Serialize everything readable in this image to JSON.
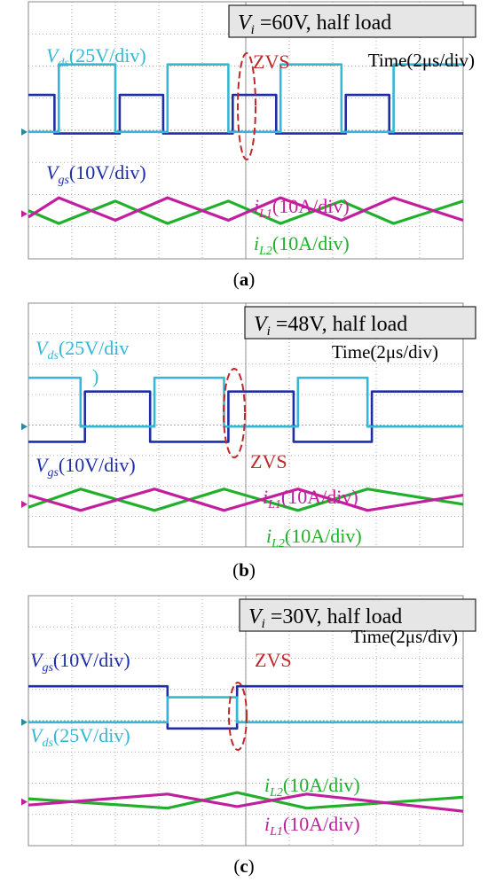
{
  "colors": {
    "vds": "#33b8d6",
    "vgs": "#1e2ea8",
    "il1": "#c21f9e",
    "il2": "#22b02c",
    "zvs": "#c0282a",
    "grid": "#9a9a9a",
    "box": "#e6e6e6"
  },
  "chart_data": [
    {
      "type": "line",
      "panel_label": "a",
      "header": {
        "var": "V",
        "sub": "i",
        "text": " =60V, half load"
      },
      "time_label": "Time(2μs/div)",
      "zvs_label": "ZVS",
      "labels": {
        "vds": {
          "var": "V",
          "sub": "ds",
          "text": "(25V/div)"
        },
        "vgs": {
          "var": "V",
          "sub": "gs",
          "text": "(10V/div)"
        },
        "il1": {
          "var": "i",
          "sub": "L1",
          "text": "(10A/div)"
        },
        "il2": {
          "var": "i",
          "sub": "L2",
          "text": "(10A/div)"
        }
      },
      "x_range_div": [
        0,
        10
      ],
      "y_range_div": [
        0,
        8
      ],
      "series": [
        {
          "key": "vds",
          "x": [
            0.0,
            0.7,
            0.7,
            2.0,
            2.0,
            3.2,
            3.2,
            4.6,
            4.6,
            5.8,
            5.8,
            7.2,
            7.2,
            8.4,
            8.4,
            10.0
          ],
          "y": [
            3.95,
            3.95,
            6.05,
            6.05,
            3.95,
            3.95,
            6.05,
            6.05,
            3.95,
            3.95,
            6.05,
            6.05,
            3.95,
            3.95,
            6.05,
            6.05
          ]
        },
        {
          "key": "vgs",
          "x": [
            0.0,
            0.6,
            0.6,
            2.1,
            2.1,
            3.1,
            3.1,
            4.7,
            4.7,
            5.7,
            5.7,
            7.3,
            7.3,
            8.3,
            8.3,
            10.0
          ],
          "y": [
            5.1,
            5.1,
            3.9,
            3.9,
            5.1,
            5.1,
            3.9,
            3.9,
            5.1,
            5.1,
            3.9,
            3.9,
            5.1,
            5.1,
            3.9,
            3.9
          ]
        },
        {
          "key": "il1",
          "x": [
            0.0,
            0.7,
            2.0,
            3.2,
            4.6,
            5.8,
            7.2,
            8.4,
            10.0
          ],
          "y": [
            1.3,
            1.9,
            1.2,
            1.9,
            1.2,
            1.9,
            1.2,
            1.9,
            1.2
          ]
        },
        {
          "key": "il2",
          "x": [
            0.0,
            0.7,
            2.0,
            3.2,
            4.6,
            5.8,
            7.2,
            8.4,
            10.0
          ],
          "y": [
            1.5,
            1.1,
            1.8,
            1.1,
            1.8,
            1.1,
            1.8,
            1.1,
            1.8
          ]
        }
      ]
    },
    {
      "type": "line",
      "panel_label": "b",
      "header": {
        "var": "V",
        "sub": "i",
        "text": " =48V, half load"
      },
      "time_label": "Time(2μs/div)",
      "zvs_label": "ZVS",
      "labels": {
        "vds": {
          "var": "V",
          "sub": "ds",
          "text": "(25V/div"
        },
        "vds_extra": ")",
        "vgs": {
          "var": "V",
          "sub": "gs",
          "text": "(10V/div)"
        },
        "il1": {
          "var": "i",
          "sub": "L1",
          "text": "(10A/div)"
        },
        "il2": {
          "var": "i",
          "sub": "L2",
          "text": "(10A/div)"
        }
      },
      "x_range_div": [
        0,
        10
      ],
      "y_range_div": [
        0,
        8
      ],
      "series": [
        {
          "key": "vds",
          "x": [
            0.0,
            1.2,
            1.2,
            2.9,
            2.9,
            4.5,
            4.5,
            6.2,
            6.2,
            7.8,
            7.8,
            10.0
          ],
          "y": [
            5.55,
            5.55,
            3.95,
            3.95,
            5.55,
            5.55,
            3.95,
            3.95,
            5.55,
            5.55,
            3.95,
            3.95
          ]
        },
        {
          "key": "vgs",
          "x": [
            0.0,
            1.3,
            1.3,
            2.8,
            2.8,
            4.6,
            4.6,
            6.1,
            6.1,
            7.9,
            7.9,
            10.0
          ],
          "y": [
            3.45,
            3.45,
            5.1,
            5.1,
            3.45,
            3.45,
            5.1,
            5.1,
            3.45,
            3.45,
            5.1,
            5.1
          ]
        },
        {
          "key": "il1",
          "x": [
            0.0,
            1.2,
            2.9,
            4.5,
            6.2,
            7.8,
            10.0
          ],
          "y": [
            1.7,
            1.2,
            1.9,
            1.2,
            1.9,
            1.2,
            1.7
          ]
        },
        {
          "key": "il2",
          "x": [
            0.0,
            1.2,
            2.9,
            4.5,
            6.2,
            7.8,
            10.0
          ],
          "y": [
            1.3,
            1.9,
            1.2,
            1.9,
            1.2,
            1.9,
            1.4
          ]
        }
      ]
    },
    {
      "type": "line",
      "panel_label": "c",
      "header": {
        "var": "V",
        "sub": "i",
        "text": " =30V, half load"
      },
      "time_label": "Time(2μs/div)",
      "zvs_label": "ZVS",
      "labels": {
        "vgs": {
          "var": "V",
          "sub": "gs",
          "text": "(10V/div)"
        },
        "vds": {
          "var": "V",
          "sub": "ds",
          "text": "(25V/div)"
        },
        "il2": {
          "var": "i",
          "sub": "L2",
          "text": "(10A/div)"
        },
        "il1": {
          "var": "i",
          "sub": "L1",
          "text": "(10A/div)"
        }
      },
      "x_range_div": [
        0,
        10
      ],
      "y_range_div": [
        0,
        8
      ],
      "series": [
        {
          "key": "vds",
          "x": [
            0.0,
            3.2,
            3.2,
            4.8,
            4.8,
            10.0
          ],
          "y": [
            3.95,
            3.95,
            4.75,
            4.75,
            3.95,
            3.95
          ]
        },
        {
          "key": "vgs",
          "x": [
            0.0,
            3.2,
            3.2,
            4.8,
            4.8,
            10.0
          ],
          "y": [
            5.1,
            5.1,
            3.75,
            3.75,
            5.1,
            5.1
          ]
        },
        {
          "key": "il1",
          "x": [
            0.0,
            3.2,
            4.8,
            6.4,
            10.0
          ],
          "y": [
            1.3,
            1.65,
            1.25,
            1.65,
            1.1
          ]
        },
        {
          "key": "il2",
          "x": [
            0.0,
            3.2,
            4.8,
            6.4,
            10.0
          ],
          "y": [
            1.5,
            1.2,
            1.7,
            1.2,
            1.55
          ]
        }
      ]
    }
  ]
}
